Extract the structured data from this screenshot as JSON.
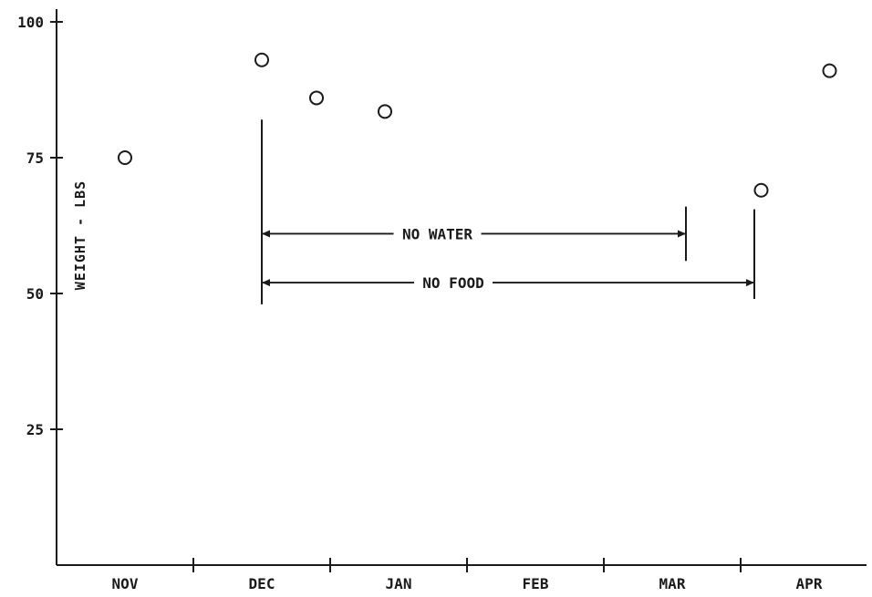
{
  "chart_data": {
    "type": "scatter",
    "ylabel": "WEIGHT - LBS",
    "xlabel": "",
    "title": "",
    "ylim": [
      0,
      100
    ],
    "yticks": [
      25,
      50,
      75,
      100
    ],
    "months": [
      "NOV",
      "DEC",
      "JAN",
      "FEB",
      "MAR",
      "APR"
    ],
    "points": [
      {
        "x": 0.5,
        "y": 75
      },
      {
        "x": 1.5,
        "y": 93
      },
      {
        "x": 1.9,
        "y": 86
      },
      {
        "x": 2.4,
        "y": 83.5
      },
      {
        "x": 5.15,
        "y": 69
      },
      {
        "x": 5.65,
        "y": 91
      }
    ],
    "annotations": [
      {
        "label": "NO WATER",
        "x_start": 1.5,
        "x_end": 4.6,
        "y": 61
      },
      {
        "label": "NO FOOD",
        "x_start": 1.5,
        "x_end": 5.1,
        "y": 52
      }
    ]
  }
}
